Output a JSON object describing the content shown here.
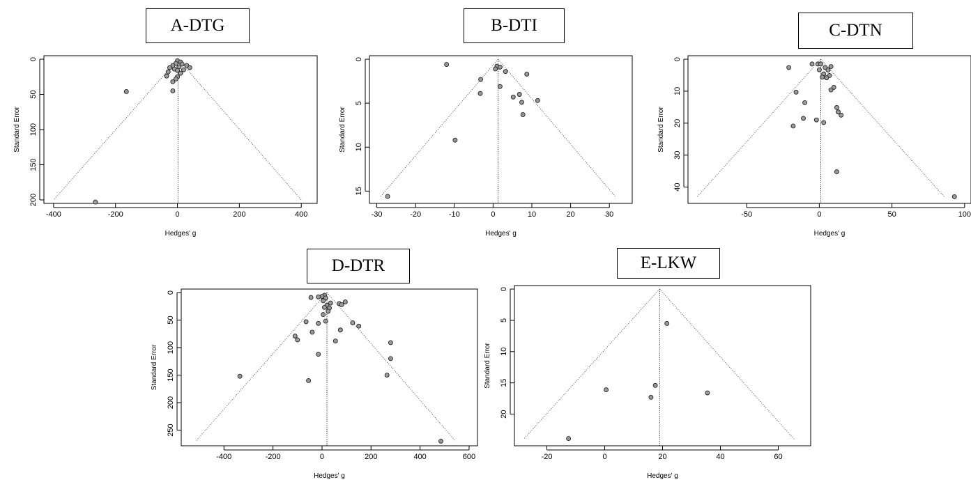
{
  "chart_data": [
    {
      "type": "scatter",
      "panel_label": "A-DTG",
      "xlabel": "Hedges' g",
      "ylabel": "Standard Error",
      "xlim": [
        -420,
        440
      ],
      "ylim": [
        0,
        200
      ],
      "x_ticks": [
        -400,
        -200,
        0,
        200,
        400
      ],
      "y_ticks": [
        0,
        50,
        100,
        150,
        200
      ],
      "y_reversed": true,
      "pooled_effect": 2,
      "funnel_apex": [
        2,
        0
      ],
      "funnel_base": [
        [
          -400,
          200
        ],
        [
          400,
          200
        ]
      ],
      "points": [
        {
          "x": 0,
          "y": 2
        },
        {
          "x": 10,
          "y": 4
        },
        {
          "x": -5,
          "y": 6
        },
        {
          "x": 15,
          "y": 7
        },
        {
          "x": -15,
          "y": 9
        },
        {
          "x": 30,
          "y": 9
        },
        {
          "x": 5,
          "y": 11
        },
        {
          "x": -25,
          "y": 12
        },
        {
          "x": 40,
          "y": 12
        },
        {
          "x": -10,
          "y": 14
        },
        {
          "x": 20,
          "y": 15
        },
        {
          "x": -30,
          "y": 18
        },
        {
          "x": 0,
          "y": 16
        },
        {
          "x": 10,
          "y": 20
        },
        {
          "x": -35,
          "y": 24
        },
        {
          "x": 0,
          "y": 25
        },
        {
          "x": -5,
          "y": 28
        },
        {
          "x": -15,
          "y": 32
        },
        {
          "x": -15,
          "y": 45
        },
        {
          "x": -165,
          "y": 46
        },
        {
          "x": -265,
          "y": 203
        }
      ]
    },
    {
      "type": "scatter",
      "panel_label": "B-DTI",
      "xlabel": "Hedges' g",
      "ylabel": "Standard Error",
      "xlim": [
        -31,
        35
      ],
      "ylim": [
        0,
        16
      ],
      "x_ticks": [
        -30,
        -20,
        -10,
        0,
        10,
        20,
        30
      ],
      "y_ticks": [
        0,
        5,
        10,
        15
      ],
      "y_reversed": true,
      "pooled_effect": 1.3,
      "funnel_apex": [
        1.3,
        0
      ],
      "funnel_base": [
        [
          -29,
          15.6
        ],
        [
          31.5,
          15.6
        ]
      ],
      "points": [
        {
          "x": -12,
          "y": 0.6
        },
        {
          "x": 1,
          "y": 0.8
        },
        {
          "x": 1.8,
          "y": 0.9
        },
        {
          "x": 0.6,
          "y": 1.1
        },
        {
          "x": 3.2,
          "y": 1.4
        },
        {
          "x": 8.7,
          "y": 1.7
        },
        {
          "x": -3.2,
          "y": 2.3
        },
        {
          "x": 1.8,
          "y": 3.1
        },
        {
          "x": -3.3,
          "y": 3.9
        },
        {
          "x": 6.8,
          "y": 4.0
        },
        {
          "x": 5.2,
          "y": 4.3
        },
        {
          "x": 11.5,
          "y": 4.7
        },
        {
          "x": 7.4,
          "y": 4.9
        },
        {
          "x": 7.7,
          "y": 6.3
        },
        {
          "x": -9.8,
          "y": 9.2
        },
        {
          "x": -27.2,
          "y": 15.6
        }
      ]
    },
    {
      "type": "scatter",
      "panel_label": "C-DTN",
      "xlabel": "Hedges' g",
      "ylabel": "Standard Error",
      "xlim": [
        -88,
        102
      ],
      "ylim": [
        0,
        44
      ],
      "x_ticks": [
        -50,
        0,
        50,
        100
      ],
      "y_ticks": [
        0,
        10,
        20,
        30,
        40
      ],
      "y_reversed": true,
      "pooled_effect": 1,
      "funnel_apex": [
        1,
        0
      ],
      "funnel_base": [
        [
          -84,
          43
        ],
        [
          86,
          43
        ]
      ],
      "points": [
        {
          "x": -5,
          "y": 1.5
        },
        {
          "x": -1,
          "y": 1.5
        },
        {
          "x": 1,
          "y": 1.5
        },
        {
          "x": 8,
          "y": 2.3
        },
        {
          "x": -21,
          "y": 2.6
        },
        {
          "x": 4,
          "y": 2.6
        },
        {
          "x": 0,
          "y": 3.3
        },
        {
          "x": 6,
          "y": 3.4
        },
        {
          "x": 3,
          "y": 4.6
        },
        {
          "x": 7,
          "y": 5.1
        },
        {
          "x": 2,
          "y": 5.6
        },
        {
          "x": 5,
          "y": 5.8
        },
        {
          "x": 10,
          "y": 8.8
        },
        {
          "x": 8,
          "y": 9.6
        },
        {
          "x": -16,
          "y": 10.3
        },
        {
          "x": -10,
          "y": 13.6
        },
        {
          "x": 12,
          "y": 15.1
        },
        {
          "x": 13,
          "y": 16.5
        },
        {
          "x": 15,
          "y": 17.5
        },
        {
          "x": -11,
          "y": 18.5
        },
        {
          "x": -2,
          "y": 19
        },
        {
          "x": 3,
          "y": 19.8
        },
        {
          "x": -18,
          "y": 20.9
        },
        {
          "x": 12,
          "y": 35.2
        },
        {
          "x": 93,
          "y": 43
        }
      ]
    },
    {
      "type": "scatter",
      "panel_label": "D-DTR",
      "xlabel": "Hedges' g",
      "ylabel": "Standard Error",
      "xlim": [
        -560,
        620
      ],
      "ylim": [
        0,
        272
      ],
      "x_ticks": [
        -400,
        -200,
        0,
        200,
        400,
        600
      ],
      "y_ticks": [
        0,
        50,
        100,
        150,
        200,
        250
      ],
      "y_reversed": true,
      "pooled_effect": 20,
      "funnel_apex": [
        20,
        0
      ],
      "funnel_base": [
        [
          -515,
          270
        ],
        [
          545,
          270
        ]
      ],
      "points": [
        {
          "x": 10,
          "y": 5
        },
        {
          "x": 0,
          "y": 7
        },
        {
          "x": -15,
          "y": 8
        },
        {
          "x": -45,
          "y": 9
        },
        {
          "x": 15,
          "y": 10
        },
        {
          "x": 5,
          "y": 15
        },
        {
          "x": 95,
          "y": 17
        },
        {
          "x": 35,
          "y": 19
        },
        {
          "x": 70,
          "y": 20
        },
        {
          "x": 80,
          "y": 22
        },
        {
          "x": 20,
          "y": 23
        },
        {
          "x": 10,
          "y": 27
        },
        {
          "x": 30,
          "y": 28
        },
        {
          "x": 25,
          "y": 34
        },
        {
          "x": 5,
          "y": 40
        },
        {
          "x": 15,
          "y": 52
        },
        {
          "x": -65,
          "y": 53
        },
        {
          "x": -15,
          "y": 56
        },
        {
          "x": 125,
          "y": 55
        },
        {
          "x": 150,
          "y": 61
        },
        {
          "x": 75,
          "y": 68
        },
        {
          "x": -40,
          "y": 72
        },
        {
          "x": -110,
          "y": 79
        },
        {
          "x": -100,
          "y": 86
        },
        {
          "x": 55,
          "y": 88
        },
        {
          "x": 280,
          "y": 91
        },
        {
          "x": -15,
          "y": 112
        },
        {
          "x": 280,
          "y": 120
        },
        {
          "x": 265,
          "y": 150
        },
        {
          "x": -335,
          "y": 152
        },
        {
          "x": -55,
          "y": 160
        },
        {
          "x": 485,
          "y": 270
        }
      ]
    },
    {
      "type": "scatter",
      "panel_label": "E-LKW",
      "xlabel": "Hedges' g",
      "ylabel": "Standard Error",
      "xlim": [
        -30,
        70
      ],
      "ylim": [
        0,
        24.5
      ],
      "x_ticks": [
        -20,
        0,
        20,
        40,
        60
      ],
      "y_ticks": [
        0,
        5,
        10,
        15,
        20
      ],
      "y_reversed": true,
      "pooled_effect": 19,
      "funnel_apex": [
        19,
        0
      ],
      "funnel_base": [
        [
          -28,
          24
        ],
        [
          65.5,
          24
        ]
      ],
      "points": [
        {
          "x": 21.5,
          "y": 5.5
        },
        {
          "x": 0.5,
          "y": 16.1
        },
        {
          "x": 17.5,
          "y": 15.4
        },
        {
          "x": 16,
          "y": 17.3
        },
        {
          "x": 35.5,
          "y": 16.6
        },
        {
          "x": -12.5,
          "y": 23.9
        }
      ]
    }
  ]
}
